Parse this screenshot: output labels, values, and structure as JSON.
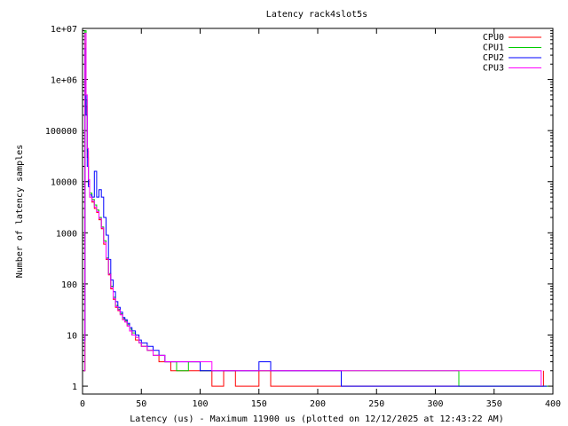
{
  "chart_data": {
    "type": "line",
    "title": "Latency rack4slot5s",
    "xlabel": "Latency (us) - Maximum 11900 us (plotted on 12/12/2025 at 12:43:22 AM)",
    "ylabel": "Number of latency samples",
    "x_scale": "linear",
    "y_scale": "log",
    "xlim": [
      0,
      400
    ],
    "ylim": [
      0.7,
      10000000
    ],
    "x_ticks": [
      0,
      50,
      100,
      150,
      200,
      250,
      300,
      350,
      400
    ],
    "x_tick_labels": [
      "0",
      "50",
      "100",
      "150",
      "200",
      "250",
      "300",
      "350",
      "400"
    ],
    "y_ticks": [
      1,
      10,
      100,
      1000,
      10000,
      100000,
      1000000,
      10000000
    ],
    "y_tick_labels": [
      "1",
      "10",
      "100",
      "1000",
      "10000",
      "100000",
      "1e+06",
      "1e+07"
    ],
    "grid": false,
    "legend_position": "top-right",
    "series": [
      {
        "name": "CPU0",
        "color": "#ff0000",
        "points": [
          [
            1,
            2
          ],
          [
            2,
            5000000
          ],
          [
            3,
            300000
          ],
          [
            4,
            30000
          ],
          [
            5,
            9000
          ],
          [
            6,
            5000
          ],
          [
            8,
            4000
          ],
          [
            10,
            3000
          ],
          [
            12,
            2500
          ],
          [
            14,
            1800
          ],
          [
            16,
            1200
          ],
          [
            18,
            600
          ],
          [
            20,
            300
          ],
          [
            22,
            150
          ],
          [
            24,
            80
          ],
          [
            26,
            50
          ],
          [
            28,
            35
          ],
          [
            30,
            30
          ],
          [
            32,
            25
          ],
          [
            34,
            20
          ],
          [
            36,
            18
          ],
          [
            38,
            15
          ],
          [
            40,
            12
          ],
          [
            42,
            10
          ],
          [
            45,
            8
          ],
          [
            48,
            7
          ],
          [
            50,
            6
          ],
          [
            55,
            5
          ],
          [
            60,
            4
          ],
          [
            65,
            3
          ],
          [
            70,
            3
          ],
          [
            75,
            2
          ],
          [
            80,
            2
          ],
          [
            90,
            2
          ],
          [
            100,
            2
          ],
          [
            110,
            1
          ],
          [
            120,
            2
          ],
          [
            130,
            1
          ],
          [
            140,
            1
          ],
          [
            150,
            2
          ],
          [
            160,
            1
          ],
          [
            180,
            1
          ],
          [
            200,
            1
          ],
          [
            220,
            1
          ],
          [
            250,
            1
          ],
          [
            300,
            1
          ],
          [
            350,
            1
          ],
          [
            392,
            2
          ]
        ]
      },
      {
        "name": "CPU1",
        "color": "#00cc00",
        "points": [
          [
            1,
            2
          ],
          [
            2,
            9000000
          ],
          [
            3,
            400000
          ],
          [
            4,
            40000
          ],
          [
            5,
            10000
          ],
          [
            6,
            6000
          ],
          [
            8,
            4500
          ],
          [
            10,
            3500
          ],
          [
            12,
            2800
          ],
          [
            14,
            2000
          ],
          [
            16,
            1300
          ],
          [
            18,
            700
          ],
          [
            20,
            320
          ],
          [
            22,
            160
          ],
          [
            24,
            90
          ],
          [
            26,
            55
          ],
          [
            28,
            38
          ],
          [
            30,
            32
          ],
          [
            32,
            26
          ],
          [
            34,
            21
          ],
          [
            36,
            19
          ],
          [
            38,
            16
          ],
          [
            40,
            13
          ],
          [
            42,
            11
          ],
          [
            45,
            9
          ],
          [
            48,
            7
          ],
          [
            50,
            6
          ],
          [
            55,
            5
          ],
          [
            60,
            4
          ],
          [
            65,
            4
          ],
          [
            70,
            3
          ],
          [
            75,
            3
          ],
          [
            80,
            2
          ],
          [
            90,
            3
          ],
          [
            100,
            2
          ],
          [
            110,
            2
          ],
          [
            120,
            2
          ],
          [
            130,
            2
          ],
          [
            140,
            2
          ],
          [
            150,
            2
          ],
          [
            160,
            2
          ],
          [
            180,
            2
          ],
          [
            200,
            2
          ],
          [
            220,
            2
          ],
          [
            250,
            2
          ],
          [
            270,
            2
          ],
          [
            300,
            2
          ],
          [
            320,
            1
          ],
          [
            340,
            1
          ],
          [
            360,
            1
          ],
          [
            380,
            1
          ],
          [
            396,
            1
          ]
        ]
      },
      {
        "name": "CPU2",
        "color": "#0000ff",
        "points": [
          [
            1,
            8
          ],
          [
            2,
            4000000
          ],
          [
            3,
            200000
          ],
          [
            4,
            20000
          ],
          [
            5,
            8000
          ],
          [
            6,
            5500
          ],
          [
            8,
            5000
          ],
          [
            10,
            16000
          ],
          [
            12,
            5000
          ],
          [
            14,
            7000
          ],
          [
            16,
            5000
          ],
          [
            18,
            2000
          ],
          [
            20,
            900
          ],
          [
            22,
            300
          ],
          [
            24,
            120
          ],
          [
            26,
            70
          ],
          [
            28,
            45
          ],
          [
            30,
            35
          ],
          [
            32,
            28
          ],
          [
            34,
            22
          ],
          [
            36,
            20
          ],
          [
            38,
            17
          ],
          [
            40,
            14
          ],
          [
            42,
            12
          ],
          [
            45,
            10
          ],
          [
            48,
            8
          ],
          [
            50,
            7
          ],
          [
            55,
            6
          ],
          [
            60,
            5
          ],
          [
            65,
            4
          ],
          [
            70,
            3
          ],
          [
            75,
            3
          ],
          [
            80,
            3
          ],
          [
            90,
            3
          ],
          [
            100,
            2
          ],
          [
            110,
            2
          ],
          [
            120,
            2
          ],
          [
            130,
            2
          ],
          [
            140,
            2
          ],
          [
            150,
            3
          ],
          [
            160,
            2
          ],
          [
            180,
            2
          ],
          [
            200,
            2
          ],
          [
            220,
            1
          ],
          [
            250,
            1
          ],
          [
            280,
            1
          ],
          [
            300,
            1
          ],
          [
            340,
            1
          ],
          [
            380,
            1
          ],
          [
            395,
            1
          ]
        ]
      },
      {
        "name": "CPU3",
        "color": "#ff00ff",
        "points": [
          [
            1,
            2
          ],
          [
            2,
            8000000
          ],
          [
            3,
            500000
          ],
          [
            4,
            45000
          ],
          [
            5,
            11000
          ],
          [
            6,
            5000
          ],
          [
            8,
            4200
          ],
          [
            10,
            3200
          ],
          [
            12,
            2600
          ],
          [
            14,
            1900
          ],
          [
            16,
            1250
          ],
          [
            18,
            650
          ],
          [
            20,
            310
          ],
          [
            22,
            155
          ],
          [
            24,
            85
          ],
          [
            26,
            52
          ],
          [
            28,
            36
          ],
          [
            30,
            31
          ],
          [
            32,
            25
          ],
          [
            34,
            20
          ],
          [
            36,
            18
          ],
          [
            38,
            15
          ],
          [
            40,
            12
          ],
          [
            42,
            10
          ],
          [
            45,
            9
          ],
          [
            48,
            7
          ],
          [
            50,
            6
          ],
          [
            55,
            5
          ],
          [
            60,
            4
          ],
          [
            65,
            4
          ],
          [
            70,
            3
          ],
          [
            75,
            3
          ],
          [
            80,
            3
          ],
          [
            90,
            3
          ],
          [
            100,
            3
          ],
          [
            110,
            2
          ],
          [
            120,
            2
          ],
          [
            130,
            2
          ],
          [
            140,
            2
          ],
          [
            150,
            2
          ],
          [
            160,
            2
          ],
          [
            180,
            2
          ],
          [
            200,
            2
          ],
          [
            220,
            2
          ],
          [
            250,
            2
          ],
          [
            280,
            2
          ],
          [
            300,
            2
          ],
          [
            330,
            2
          ],
          [
            360,
            2
          ],
          [
            390,
            1
          ]
        ]
      }
    ]
  }
}
